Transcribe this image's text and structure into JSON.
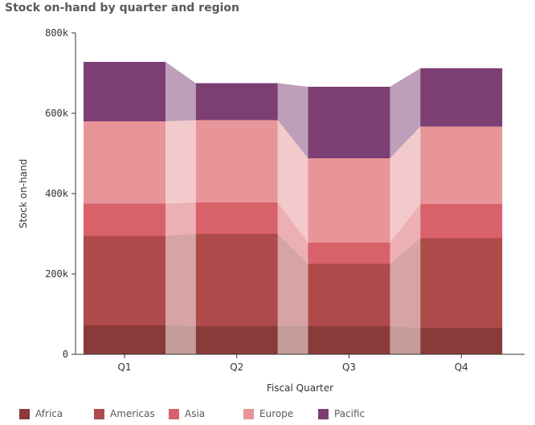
{
  "chart_data": {
    "type": "bar",
    "title": "Stock on-hand by quarter and region",
    "xlabel": "Fiscal Quarter",
    "ylabel": "Stock on-hand",
    "categories": [
      "Q1",
      "Q2",
      "Q3",
      "Q4"
    ],
    "ylim": [
      0,
      800000
    ],
    "yticks": [
      0,
      200000,
      400000,
      600000,
      800000
    ],
    "ytick_labels": [
      "0",
      "200k",
      "400k",
      "600k",
      "800k"
    ],
    "stacked": true,
    "connector_bands": true,
    "grid": false,
    "legend_position": "bottom",
    "series": [
      {
        "name": "Africa",
        "color": "#8b3a3a",
        "values": [
          72000,
          70000,
          70000,
          66000
        ]
      },
      {
        "name": "Americas",
        "color": "#ae4a4a",
        "values": [
          223000,
          230000,
          155000,
          223000
        ]
      },
      {
        "name": "Asia",
        "color": "#d9616a",
        "values": [
          80000,
          78000,
          53000,
          85000
        ]
      },
      {
        "name": "Europe",
        "color": "#e8959a",
        "values": [
          205000,
          205000,
          210000,
          193000
        ]
      },
      {
        "name": "Pacific",
        "color": "#7b3f73",
        "values": [
          148000,
          92000,
          178000,
          145000
        ]
      }
    ]
  }
}
